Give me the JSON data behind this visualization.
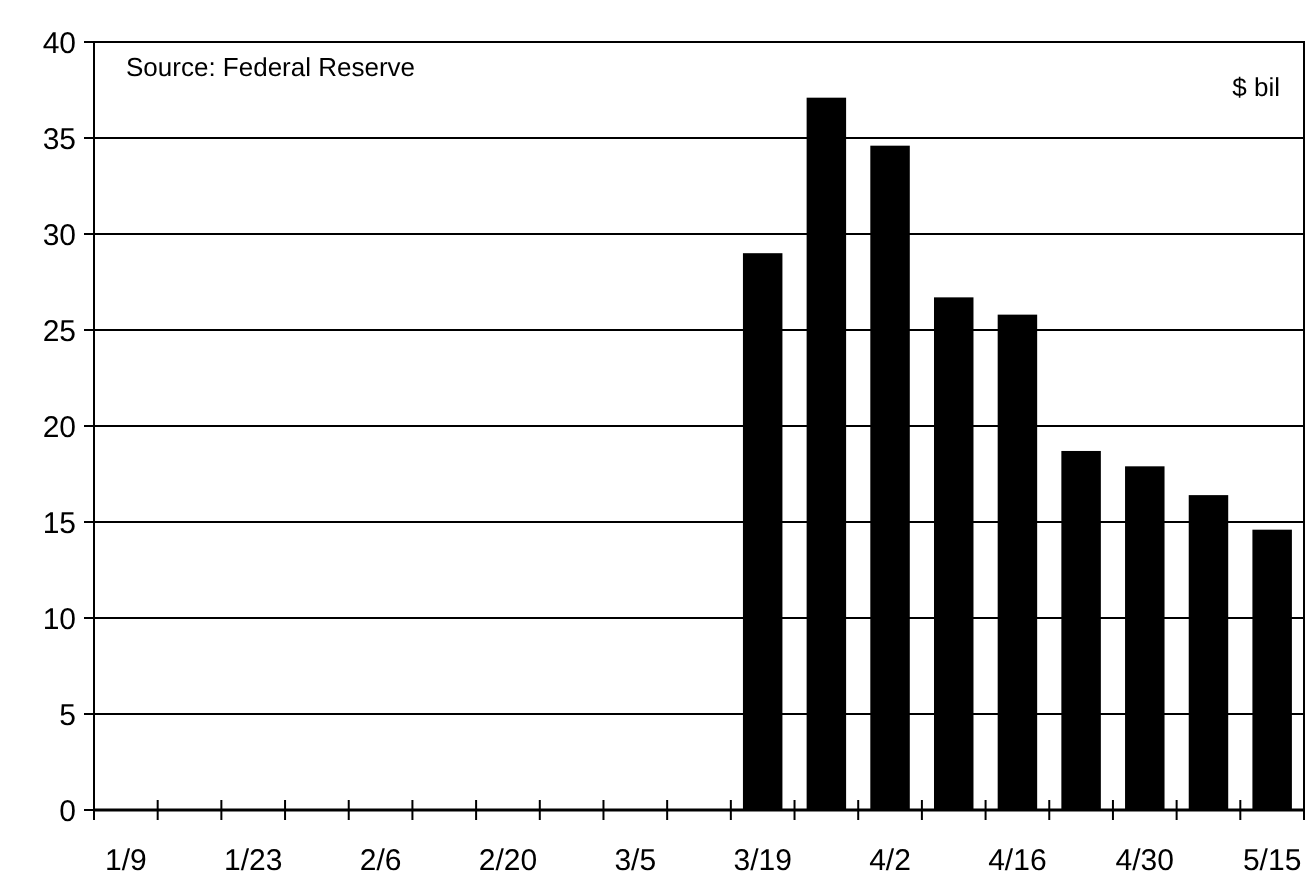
{
  "chart_data": {
    "type": "bar",
    "categories": [
      "1/9",
      null,
      "1/23",
      null,
      "2/6",
      null,
      "2/20",
      null,
      "3/5",
      null,
      "3/19",
      null,
      "4/2",
      null,
      "4/16",
      null,
      "4/30",
      null,
      "5/15"
    ],
    "values": [
      null,
      null,
      null,
      null,
      null,
      null,
      null,
      null,
      null,
      null,
      29,
      37.1,
      34.6,
      26.7,
      25.8,
      18.7,
      17.9,
      16.4,
      14.6
    ],
    "color": "#000000",
    "ylim": [
      0,
      40
    ],
    "yticks": [
      0,
      5,
      10,
      15,
      20,
      25,
      30,
      35,
      40
    ],
    "grid": "y",
    "annotations": [
      "Source: Federal Reserve",
      "$ bil"
    ]
  }
}
